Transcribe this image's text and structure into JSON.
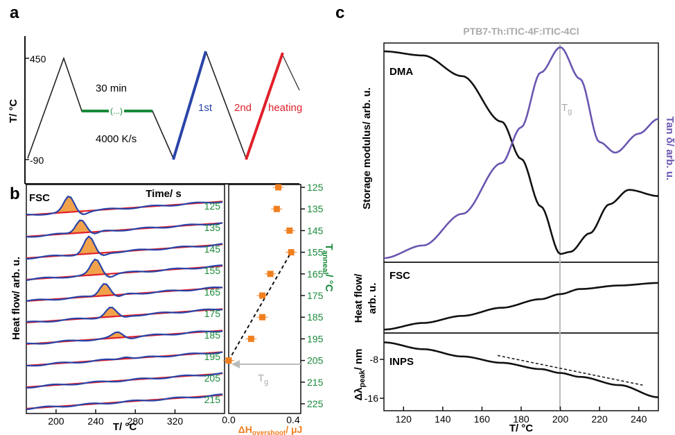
{
  "panels": {
    "a": "a",
    "b": "b",
    "c": "c"
  },
  "panel_a": {
    "ylabel": "T/ °C",
    "xlabel": "Time/ s",
    "tick_450": "450",
    "tick_m90": "-90",
    "label_30min": "30 min",
    "label_rate": "4000 K/s",
    "label_dots": "(...)",
    "label_1st": "1st",
    "label_2nd": "2nd",
    "label_heating": "heating",
    "colors": {
      "profile": "#222222",
      "anneal": "#1a8a3a",
      "first": "#2a44a8",
      "second": "#e0202a"
    }
  },
  "panel_b": {
    "fsc_label": "FSC",
    "ylabel": "Heat flow/ arb. u.",
    "xlabel": "T/ °C",
    "x_ticks": [
      "200",
      "240",
      "280",
      "320"
    ],
    "anneal_temps": [
      "125",
      "135",
      "145",
      "155",
      "165",
      "175",
      "185",
      "195",
      "205",
      "215"
    ],
    "right_axis_label": "T",
    "right_axis_sub": "anneal",
    "right_axis_unit": "/ °C",
    "right_ticks": [
      "125",
      "135",
      "145",
      "155",
      "165",
      "175",
      "185",
      "195",
      "205",
      "215",
      "225"
    ],
    "dh_xlabel": "ΔH",
    "dh_xlabel_sub": "overshoot",
    "dh_xlabel_unit": "/ μJ",
    "dh_ticks": [
      "0.0",
      "0.4"
    ],
    "tg_label": "T",
    "tg_sub": "g",
    "colors": {
      "trace": "#2a44a8",
      "ref": "#e0202a",
      "peak": "#f2a24a",
      "marker": "#f07f20",
      "axis_green": "#1a8a3a",
      "orange_text": "#f07f20"
    }
  },
  "panel_c": {
    "title": "PTB7-Th:ITIC-4F:ITIC-4Cl",
    "dma_label": "DMA",
    "fsc_label": "FSC",
    "inps_label": "INPS",
    "ylabel_top": "Storage modulus/ arb. u.",
    "ylabel_right": "Tan δ/ arb. u.",
    "ylabel_mid_1": "Heat flow/",
    "ylabel_mid_2": "arb. u.",
    "ylabel_bot_1": "Δλ",
    "ylabel_bot_sub": "peak",
    "ylabel_bot_2": "/ nm",
    "y_ticks_bot": [
      "-8",
      "-16"
    ],
    "x_ticks": [
      "120",
      "140",
      "160",
      "180",
      "200",
      "220",
      "240"
    ],
    "xlabel": "T/ °C",
    "tg_label": "T",
    "tg_sub": "g",
    "colors": {
      "modulus": "#111111",
      "tan": "#6a55b0",
      "tg_line": "#bbbbbb"
    }
  },
  "chart_data": [
    {
      "type": "line",
      "title": "",
      "xlabel": "Time/ s",
      "ylabel": "T/ °C",
      "series": [
        {
          "name": "",
          "x": [
            0,
            1,
            2,
            3,
            4.5,
            5.5,
            6.5,
            7.5
          ],
          "y": [
            -90,
            450,
            150,
            150,
            150,
            -90,
            450,
            -90
          ]
        },
        {
          "name": "1st",
          "x": [
            6.5,
            7.5
          ],
          "y": [
            -90,
            450
          ]
        },
        {
          "name": "2nd",
          "x": [
            8.5,
            9.5
          ],
          "y": [
            -90,
            450
          ]
        }
      ],
      "annotations": [
        "30 min",
        "4000 K/s",
        "1st",
        "2nd",
        "heating"
      ]
    },
    {
      "type": "line",
      "title": "FSC",
      "xlabel": "T/ °C",
      "ylabel": "Heat flow/ arb. u.",
      "xlim": [
        170,
        370
      ],
      "traces": [
        {
          "anneal": 125,
          "peak_T": 213,
          "peak_h": 1.0
        },
        {
          "anneal": 135,
          "peak_T": 225,
          "peak_h": 0.9
        },
        {
          "anneal": 145,
          "peak_T": 233,
          "peak_h": 1.1
        },
        {
          "anneal": 155,
          "peak_T": 240,
          "peak_h": 1.0
        },
        {
          "anneal": 165,
          "peak_T": 249,
          "peak_h": 0.85
        },
        {
          "anneal": 175,
          "peak_T": 255,
          "peak_h": 0.6
        },
        {
          "anneal": 185,
          "peak_T": 262,
          "peak_h": 0.35
        },
        {
          "anneal": 195,
          "peak_T": 270,
          "peak_h": 0.15
        },
        {
          "anneal": 205,
          "peak_T": 0,
          "peak_h": 0
        },
        {
          "anneal": 215,
          "peak_T": 0,
          "peak_h": 0
        }
      ]
    },
    {
      "type": "scatter",
      "title": "",
      "xlabel": "ΔH overshoot/ μJ",
      "ylabel": "T anneal/ °C",
      "xlim": [
        0.0,
        0.45
      ],
      "ylim": [
        225,
        120
      ],
      "x": [
        0.31,
        0.3,
        0.38,
        0.39,
        0.26,
        0.21,
        0.21,
        0.14,
        0.0
      ],
      "y": [
        125,
        135,
        145,
        155,
        165,
        175,
        185,
        195,
        205
      ],
      "fit_line": {
        "x": [
          0.0,
          0.39
        ],
        "y": [
          205,
          155
        ]
      }
    },
    {
      "type": "line",
      "title": "PTB7-Th:ITIC-4F:ITIC-4Cl",
      "xlabel": "T/ °C",
      "xlim": [
        110,
        250
      ],
      "series": [
        {
          "name": "DMA",
          "x": [
            110,
            130,
            150,
            170,
            180,
            190,
            200,
            205,
            215,
            225,
            235,
            250
          ],
          "y": [
            1.0,
            0.98,
            0.88,
            0.66,
            0.48,
            0.25,
            0.02,
            0.03,
            0.12,
            0.26,
            0.33,
            0.3
          ]
        },
        {
          "name": "Tan δ",
          "x": [
            110,
            130,
            150,
            170,
            180,
            190,
            200,
            210,
            220,
            228,
            240,
            250
          ],
          "y": [
            0.0,
            0.06,
            0.21,
            0.45,
            0.62,
            0.88,
            1.0,
            0.85,
            0.55,
            0.5,
            0.59,
            0.66
          ]
        },
        {
          "name": "FSC",
          "x": [
            110,
            130,
            150,
            170,
            190,
            200,
            210,
            230,
            250
          ],
          "y": [
            0.0,
            0.13,
            0.27,
            0.43,
            0.6,
            0.7,
            0.8,
            0.87,
            0.92
          ]
        },
        {
          "name": "INPS",
          "x": [
            110,
            130,
            150,
            170,
            190,
            200,
            210,
            230,
            250
          ],
          "y": [
            -4.5,
            -5.9,
            -7.4,
            -8.7,
            -10.0,
            -10.8,
            -11.6,
            -13.3,
            -15.8
          ]
        }
      ],
      "tg": 200
    }
  ]
}
